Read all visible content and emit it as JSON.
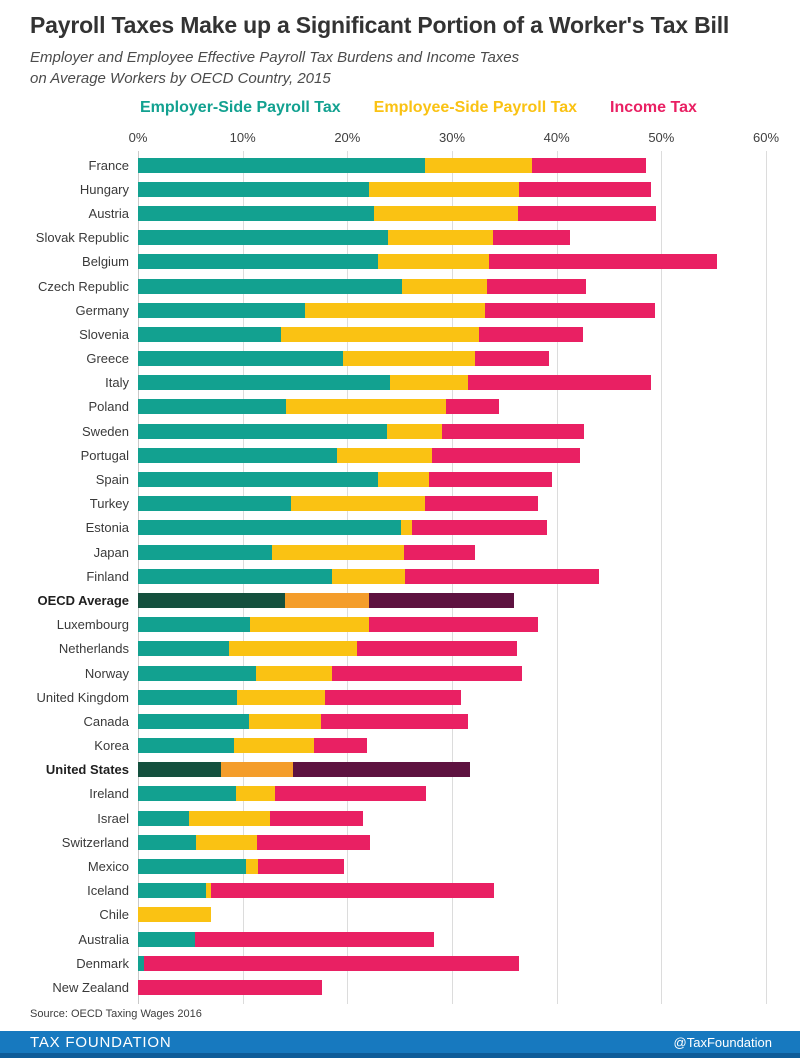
{
  "header": {
    "title": "Payroll Taxes Make up a Significant Portion of a Worker's Tax Bill",
    "subtitle_line1": "Employer and Employee Effective Payroll Tax Burdens and Income Taxes",
    "subtitle_line2": "on Average Workers by OECD Country, 2015"
  },
  "legend": {
    "items": [
      {
        "label": "Employer-Side Payroll Tax",
        "color": "#12A190"
      },
      {
        "label": "Employee-Side Payroll Tax",
        "color": "#FAC213"
      },
      {
        "label": "Income Tax",
        "color": "#E92063"
      }
    ]
  },
  "chart_data": {
    "type": "bar",
    "variant": "horizontal-stacked",
    "title": "Payroll Taxes Make up a Significant Portion of a Worker's Tax Bill",
    "xlabel": "",
    "ylabel": "",
    "xlim": [
      0,
      60
    ],
    "ticks": [
      "0%",
      "10%",
      "20%",
      "30%",
      "40%",
      "50%",
      "60%"
    ],
    "grid": true,
    "legend_position": "top",
    "series_names": [
      "Employer-Side Payroll Tax",
      "Employee-Side Payroll Tax",
      "Income Tax"
    ],
    "colors": {
      "normal": {
        "employer": "#12A190",
        "employee": "#FAC213",
        "income": "#E92063"
      },
      "emphasis": {
        "employer": "#14503E",
        "employee": "#F49D2B",
        "income": "#5E1240"
      }
    },
    "rows": [
      {
        "label": "France",
        "employer": 27.4,
        "employee": 10.2,
        "income": 10.9,
        "emphasis": false
      },
      {
        "label": "Hungary",
        "employer": 22.1,
        "employee": 14.3,
        "income": 12.6,
        "emphasis": false
      },
      {
        "label": "Austria",
        "employer": 22.5,
        "employee": 13.8,
        "income": 13.2,
        "emphasis": false
      },
      {
        "label": "Slovak Republic",
        "employer": 23.9,
        "employee": 10.0,
        "income": 7.4,
        "emphasis": false
      },
      {
        "label": "Belgium",
        "employer": 22.9,
        "employee": 10.6,
        "income": 21.8,
        "emphasis": false
      },
      {
        "label": "Czech Republic",
        "employer": 25.2,
        "employee": 8.1,
        "income": 9.5,
        "emphasis": false
      },
      {
        "label": "Germany",
        "employer": 16.0,
        "employee": 17.2,
        "income": 16.2,
        "emphasis": false
      },
      {
        "label": "Slovenia",
        "employer": 13.7,
        "employee": 18.9,
        "income": 9.9,
        "emphasis": false
      },
      {
        "label": "Greece",
        "employer": 19.6,
        "employee": 12.6,
        "income": 7.1,
        "emphasis": false
      },
      {
        "label": "Italy",
        "employer": 24.1,
        "employee": 7.4,
        "income": 17.5,
        "emphasis": false
      },
      {
        "label": "Poland",
        "employer": 14.1,
        "employee": 15.3,
        "income": 5.1,
        "emphasis": false
      },
      {
        "label": "Sweden",
        "employer": 23.8,
        "employee": 5.2,
        "income": 13.6,
        "emphasis": false
      },
      {
        "label": "Portugal",
        "employer": 19.0,
        "employee": 9.1,
        "income": 14.1,
        "emphasis": false
      },
      {
        "label": "Spain",
        "employer": 22.9,
        "employee": 4.9,
        "income": 11.8,
        "emphasis": false
      },
      {
        "label": "Turkey",
        "employer": 14.6,
        "employee": 12.8,
        "income": 10.8,
        "emphasis": false
      },
      {
        "label": "Estonia",
        "employer": 25.1,
        "employee": 1.1,
        "income": 12.9,
        "emphasis": false
      },
      {
        "label": "Japan",
        "employer": 12.8,
        "employee": 12.6,
        "income": 6.8,
        "emphasis": false
      },
      {
        "label": "Finland",
        "employer": 18.5,
        "employee": 7.0,
        "income": 18.5,
        "emphasis": false
      },
      {
        "label": "OECD Average",
        "employer": 14.0,
        "employee": 8.1,
        "income": 13.8,
        "emphasis": true
      },
      {
        "label": "Luxembourg",
        "employer": 10.7,
        "employee": 11.4,
        "income": 16.1,
        "emphasis": false
      },
      {
        "label": "Netherlands",
        "employer": 8.7,
        "employee": 12.2,
        "income": 15.3,
        "emphasis": false
      },
      {
        "label": "Norway",
        "employer": 11.3,
        "employee": 7.2,
        "income": 18.2,
        "emphasis": false
      },
      {
        "label": "United Kingdom",
        "employer": 9.5,
        "employee": 8.4,
        "income": 13.0,
        "emphasis": false
      },
      {
        "label": "Canada",
        "employer": 10.6,
        "employee": 6.9,
        "income": 14.0,
        "emphasis": false
      },
      {
        "label": "Korea",
        "employer": 9.2,
        "employee": 7.6,
        "income": 5.1,
        "emphasis": false
      },
      {
        "label": "United States",
        "employer": 7.9,
        "employee": 6.9,
        "income": 16.9,
        "emphasis": true
      },
      {
        "label": "Ireland",
        "employer": 9.4,
        "employee": 3.7,
        "income": 14.4,
        "emphasis": false
      },
      {
        "label": "Israel",
        "employer": 4.9,
        "employee": 7.7,
        "income": 8.9,
        "emphasis": false
      },
      {
        "label": "Switzerland",
        "employer": 5.5,
        "employee": 5.9,
        "income": 10.8,
        "emphasis": false
      },
      {
        "label": "Mexico",
        "employer": 10.3,
        "employee": 1.2,
        "income": 8.2,
        "emphasis": false
      },
      {
        "label": "Iceland",
        "employer": 6.5,
        "employee": 0.5,
        "income": 27.0,
        "emphasis": false
      },
      {
        "label": "Chile",
        "employer": 0,
        "employee": 7.0,
        "income": 0,
        "emphasis": false
      },
      {
        "label": "Australia",
        "employer": 5.4,
        "employee": 0,
        "income": 22.9,
        "emphasis": false
      },
      {
        "label": "Denmark",
        "employer": 0.6,
        "employee": 0,
        "income": 35.8,
        "emphasis": false
      },
      {
        "label": "New Zealand",
        "employer": 0,
        "employee": 0,
        "income": 17.6,
        "emphasis": false
      }
    ]
  },
  "footer": {
    "source": "Source: OECD Taxing Wages 2016",
    "brand": "TAX FOUNDATION",
    "handle": "@TaxFoundation",
    "bar_color": "#1779BF",
    "bar_strip_color": "#0E5C99"
  },
  "layout_colors": {
    "gridline": "#DCDCDC",
    "title_text": "#333333"
  }
}
